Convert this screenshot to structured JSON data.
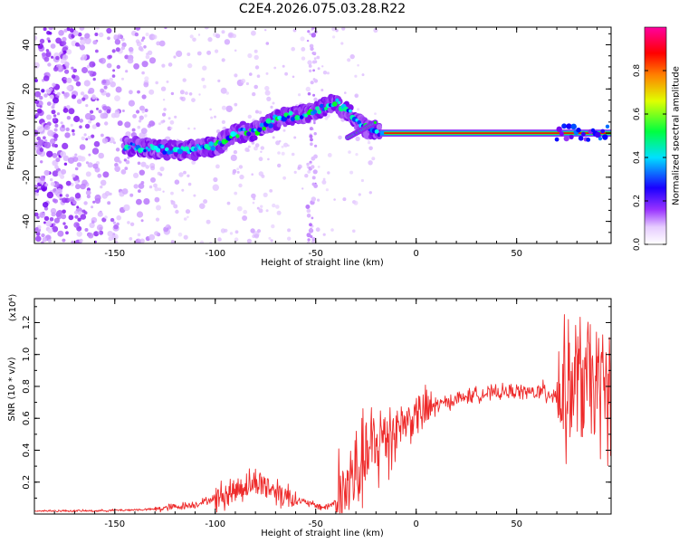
{
  "chart_data": [
    {
      "type": "heatmap",
      "title": "C2E4.2026.075.03.28.R22",
      "xlabel": "Height of straight line (km)",
      "ylabel": "Frequency (Hz)",
      "xlim": [
        -190,
        97
      ],
      "ylim": [
        -50,
        48
      ],
      "xticks": [
        -150,
        -100,
        -50,
        0,
        50
      ],
      "yticks": [
        -40,
        -20,
        0,
        20,
        40
      ],
      "colorbar": {
        "label": "Normalized spectral amplitude",
        "range": [
          0,
          1
        ],
        "ticks": [
          "0.0",
          "0.2",
          "0.4",
          "0.6",
          "0.8"
        ],
        "colors": [
          "#ffffff",
          "#cc99ff",
          "#7700ee",
          "#0000ff",
          "#00ffff",
          "#00ff00",
          "#ffff00",
          "#ff0000",
          "#ff00aa"
        ]
      },
      "ridge": [
        {
          "x": -143,
          "y": -6
        },
        {
          "x": -130,
          "y": -7
        },
        {
          "x": -115,
          "y": -8
        },
        {
          "x": -100,
          "y": -6
        },
        {
          "x": -90,
          "y": 0
        },
        {
          "x": -80,
          "y": 1
        },
        {
          "x": -70,
          "y": 6
        },
        {
          "x": -60,
          "y": 8
        },
        {
          "x": -50,
          "y": 10
        },
        {
          "x": -40,
          "y": 14
        },
        {
          "x": -32,
          "y": 8
        },
        {
          "x": -25,
          "y": 2
        },
        {
          "x": -18,
          "y": 0
        },
        {
          "x": 0,
          "y": 0
        },
        {
          "x": 50,
          "y": 0
        },
        {
          "x": 80,
          "y": 0
        },
        {
          "x": 97,
          "y": 0
        }
      ]
    },
    {
      "type": "line",
      "xlabel": "Height of straight line (km)",
      "ylabel": "SNR (10 * v/v)",
      "scale_label": "(x10⁴)",
      "xlim": [
        -190,
        97
      ],
      "ylim": [
        0,
        1.35
      ],
      "xticks": [
        -150,
        -100,
        -50,
        0,
        50
      ],
      "yticks": [
        "0.2",
        "0.4",
        "0.6",
        "0.8",
        "1.0",
        "1.2"
      ],
      "color": "#ee2a2a",
      "series": [
        {
          "x": [
            -190,
            -160,
            -130,
            -110,
            -95,
            -85,
            -78,
            -72,
            -65,
            -60,
            -52,
            -45,
            -40,
            -35,
            -30,
            -25,
            -20,
            -15,
            -10,
            -5,
            0,
            10,
            20,
            30,
            40,
            50,
            60,
            65,
            72,
            78,
            82,
            86,
            90,
            94,
            97
          ],
          "values": [
            0.02,
            0.02,
            0.03,
            0.06,
            0.12,
            0.18,
            0.2,
            0.16,
            0.12,
            0.09,
            0.06,
            0.04,
            0.08,
            0.15,
            0.25,
            0.35,
            0.42,
            0.5,
            0.55,
            0.58,
            0.62,
            0.68,
            0.72,
            0.75,
            0.76,
            0.77,
            0.76,
            0.76,
            0.75,
            0.8,
            0.85,
            0.82,
            0.8,
            0.78,
            0.8
          ]
        }
      ]
    }
  ]
}
